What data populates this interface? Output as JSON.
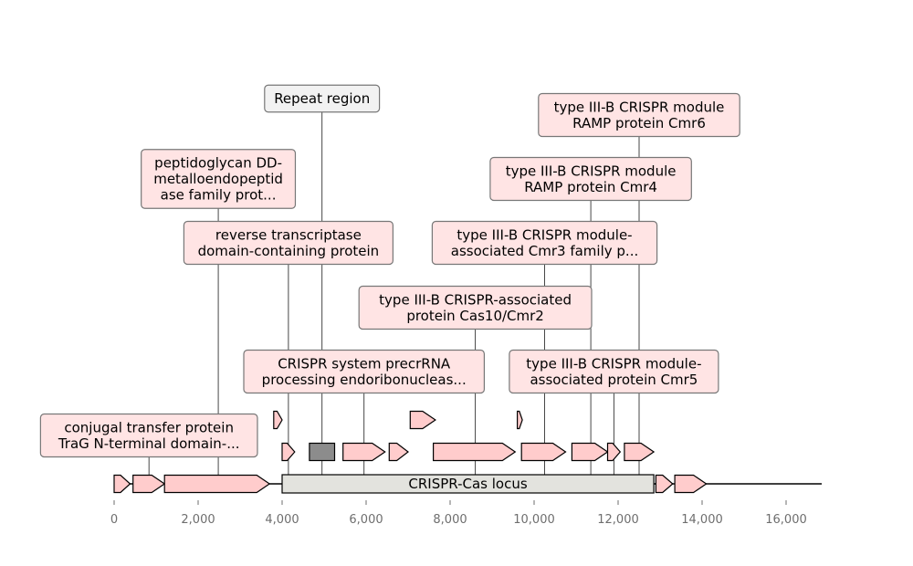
{
  "colors": {
    "gene": "#ffcccc",
    "repeat": "#8c8c8c",
    "locus": "#e3e3de",
    "annotation_box": "#ffe4e4",
    "repeat_box": "#f2f2f2",
    "axis": "#000000",
    "tick_label": "#6e6e6e"
  },
  "axis": {
    "min": 0,
    "max": 16800,
    "ticks": [
      0,
      2000,
      4000,
      6000,
      8000,
      10000,
      12000,
      14000,
      16000
    ],
    "tick_labels": [
      "0",
      "2,000",
      "4,000",
      "6,000",
      "8,000",
      "10,000",
      "12,000",
      "14,000",
      "16,000"
    ]
  },
  "locus": {
    "label": "CRISPR-Cas locus",
    "start": 4000,
    "end": 12850
  },
  "features": [
    {
      "start": 0,
      "end": 380,
      "lane": 0,
      "kind": "gene"
    },
    {
      "start": 450,
      "end": 1200,
      "lane": 0,
      "kind": "gene"
    },
    {
      "start": 1200,
      "end": 3700,
      "lane": 0,
      "kind": "gene"
    },
    {
      "start": 12900,
      "end": 13300,
      "lane": 0,
      "kind": "gene"
    },
    {
      "start": 13350,
      "end": 14100,
      "lane": 0,
      "kind": "gene"
    },
    {
      "start": 4000,
      "end": 4300,
      "lane": 1,
      "kind": "gene"
    },
    {
      "start": 4650,
      "end": 5250,
      "lane": 1,
      "kind": "repeat"
    },
    {
      "start": 5450,
      "end": 6450,
      "lane": 1,
      "kind": "gene"
    },
    {
      "start": 6550,
      "end": 7000,
      "lane": 1,
      "kind": "gene"
    },
    {
      "start": 7600,
      "end": 9550,
      "lane": 1,
      "kind": "gene"
    },
    {
      "start": 9700,
      "end": 10750,
      "lane": 1,
      "kind": "gene"
    },
    {
      "start": 10900,
      "end": 11750,
      "lane": 1,
      "kind": "gene"
    },
    {
      "start": 11750,
      "end": 12050,
      "lane": 1,
      "kind": "gene"
    },
    {
      "start": 12150,
      "end": 12850,
      "lane": 1,
      "kind": "gene"
    },
    {
      "start": 3800,
      "end": 4000,
      "lane": 2,
      "kind": "gene"
    },
    {
      "start": 7050,
      "end": 7650,
      "lane": 2,
      "kind": "gene"
    },
    {
      "start": 9600,
      "end": 9720,
      "lane": 2,
      "kind": "gene"
    }
  ],
  "annotations": [
    {
      "text": [
        "conjugal transfer protein",
        "TraG N-terminal domain-..."
      ],
      "x": 830,
      "level": 0,
      "box_center": 830,
      "kind": "gene"
    },
    {
      "text": [
        "reverse transcriptase",
        "domain-containing protein"
      ],
      "x": 4150,
      "level": 3,
      "box_center": 4150,
      "kind": "gene"
    },
    {
      "text": [
        "peptidoglycan DD-",
        "metalloendopeptid",
        "ase family prot..."
      ],
      "x": 2480,
      "level": 4,
      "box_center": 2480,
      "kind": "gene"
    },
    {
      "text": [
        "Repeat region"
      ],
      "x": 4950,
      "level": 5,
      "box_center": 4950,
      "kind": "repeat"
    },
    {
      "text": [
        "CRISPR system precrRNA",
        "processing endoribonucleas..."
      ],
      "x": 5950,
      "level": 1,
      "box_center": 5950,
      "kind": "gene"
    },
    {
      "text": [
        "type III-B CRISPR-associated",
        "protein Cas10/Cmr2"
      ],
      "x": 8600,
      "level": 2,
      "box_center": 8600,
      "kind": "gene"
    },
    {
      "text": [
        "type III-B CRISPR module-",
        "associated Cmr3 family p..."
      ],
      "x": 10250,
      "level": 3,
      "box_center": 10250,
      "kind": "gene"
    },
    {
      "text": [
        "type III-B CRISPR module",
        "RAMP protein Cmr4"
      ],
      "x": 11350,
      "level": 4,
      "box_center": 11350,
      "kind": "gene"
    },
    {
      "text": [
        "type III-B CRISPR module",
        "RAMP protein Cmr6"
      ],
      "x": 12500,
      "level": 5,
      "box_center": 12500,
      "kind": "gene"
    },
    {
      "text": [
        "type III-B CRISPR module-",
        "associated protein Cmr5"
      ],
      "x": 11900,
      "level": 1,
      "box_center": 11900,
      "kind": "gene"
    }
  ]
}
